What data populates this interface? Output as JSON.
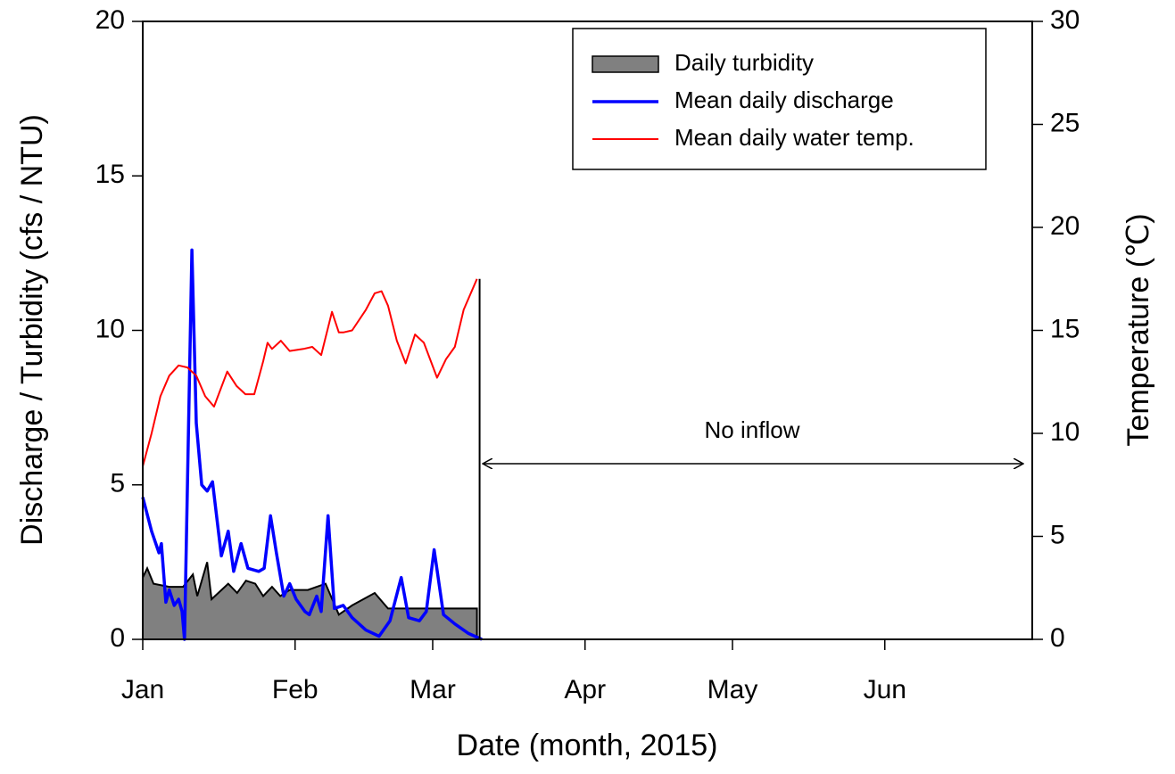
{
  "chart_data": {
    "type": "line",
    "xlabel": "Date (month, 2015)",
    "ylabel": "Discharge / Turbidity (cfs / NTU)",
    "y2label": "Temperature (℃)",
    "annotation": "No inflow",
    "xlim": [
      0,
      181
    ],
    "xticks": [
      {
        "value": 0,
        "label": "Jan"
      },
      {
        "value": 31,
        "label": "Feb"
      },
      {
        "value": 59,
        "label": "Mar"
      },
      {
        "value": 90,
        "label": "Apr"
      },
      {
        "value": 120,
        "label": "May"
      },
      {
        "value": 151,
        "label": "Jun"
      }
    ],
    "ylim": [
      0,
      20
    ],
    "yticks": [
      0,
      5,
      10,
      15,
      20
    ],
    "y2lim": [
      0,
      30
    ],
    "y2ticks": [
      0,
      5,
      10,
      15,
      20,
      25,
      30
    ],
    "legend": "upper right",
    "series": [
      {
        "name": "Daily turbidity",
        "color": "#808080",
        "edgecolor": "#000000",
        "style": "area",
        "x": [
          0,
          0.9,
          2.2,
          5.4,
          8.2,
          10.2,
          11.1,
          13.1,
          14,
          17.4,
          19.2,
          21,
          22.9,
          24.5,
          26.3,
          28,
          29.9,
          33.6,
          37.2,
          39.9,
          42.6,
          47.2,
          49.9,
          68
        ],
        "values": [
          2.0,
          2.3,
          1.8,
          1.7,
          1.7,
          2.1,
          1.4,
          2.5,
          1.3,
          1.8,
          1.5,
          1.9,
          1.8,
          1.4,
          1.7,
          1.4,
          1.6,
          1.6,
          1.8,
          0.8,
          1.1,
          1.5,
          1.0,
          1.0
        ]
      },
      {
        "name": "Mean daily discharge",
        "color": "#0000ff",
        "style": "line",
        "width": 3.5,
        "x": [
          0,
          1.8,
          3.3,
          3.8,
          4.7,
          5.4,
          6.4,
          7.3,
          8,
          8.5,
          10,
          10.9,
          12,
          13.1,
          14.2,
          16,
          17.4,
          18.5,
          20,
          21.4,
          23.6,
          24.7,
          26,
          27.2,
          28.7,
          29.9,
          31.2,
          33,
          33.9,
          35.4,
          36.3,
          37.7,
          39,
          40.8,
          42.6,
          45.4,
          48.1,
          50.3,
          52.6,
          54.1,
          56.3,
          57.7,
          59.3,
          61.2,
          63.5,
          66.2,
          69
        ],
        "values": [
          4.6,
          3.5,
          2.8,
          3.1,
          1.2,
          1.6,
          1.1,
          1.3,
          0.9,
          0,
          12.6,
          7,
          5,
          4.8,
          5.1,
          2.7,
          3.5,
          2.2,
          3.1,
          2.3,
          2.2,
          2.3,
          4.0,
          2.8,
          1.4,
          1.8,
          1.3,
          0.9,
          0.8,
          1.4,
          0.9,
          4.0,
          1.0,
          1.1,
          0.7,
          0.3,
          0.1,
          0.6,
          2.0,
          0.7,
          0.6,
          0.9,
          2.9,
          0.8,
          0.5,
          0.2,
          0
        ]
      },
      {
        "name": "Mean daily water temp.",
        "color": "#ff0000",
        "style": "line",
        "width": 2,
        "axis": "y2",
        "x": [
          0,
          1.8,
          3.6,
          5.4,
          7.3,
          9.1,
          10.9,
          12.7,
          14.5,
          17.2,
          19.1,
          20.9,
          22.7,
          24.5,
          25.4,
          26.3,
          28.1,
          29.9,
          32.7,
          34.5,
          36.3,
          38.5,
          39.9,
          40.8,
          42.6,
          45.4,
          47.2,
          48.6,
          49.9,
          51.7,
          53.5,
          55.4,
          57.2,
          59.9,
          61.7,
          63.5,
          65.3,
          68
        ],
        "values": [
          8.4,
          10,
          11.8,
          12.8,
          13.3,
          13.2,
          12.8,
          11.8,
          11.3,
          13,
          12.3,
          11.9,
          11.9,
          13.5,
          14.4,
          14.1,
          14.5,
          14,
          14.1,
          14.2,
          13.8,
          15.9,
          14.9,
          14.9,
          15,
          16,
          16.8,
          16.9,
          16.2,
          14.5,
          13.4,
          14.8,
          14.4,
          12.7,
          13.6,
          14.2,
          16,
          17.5
        ]
      }
    ]
  }
}
